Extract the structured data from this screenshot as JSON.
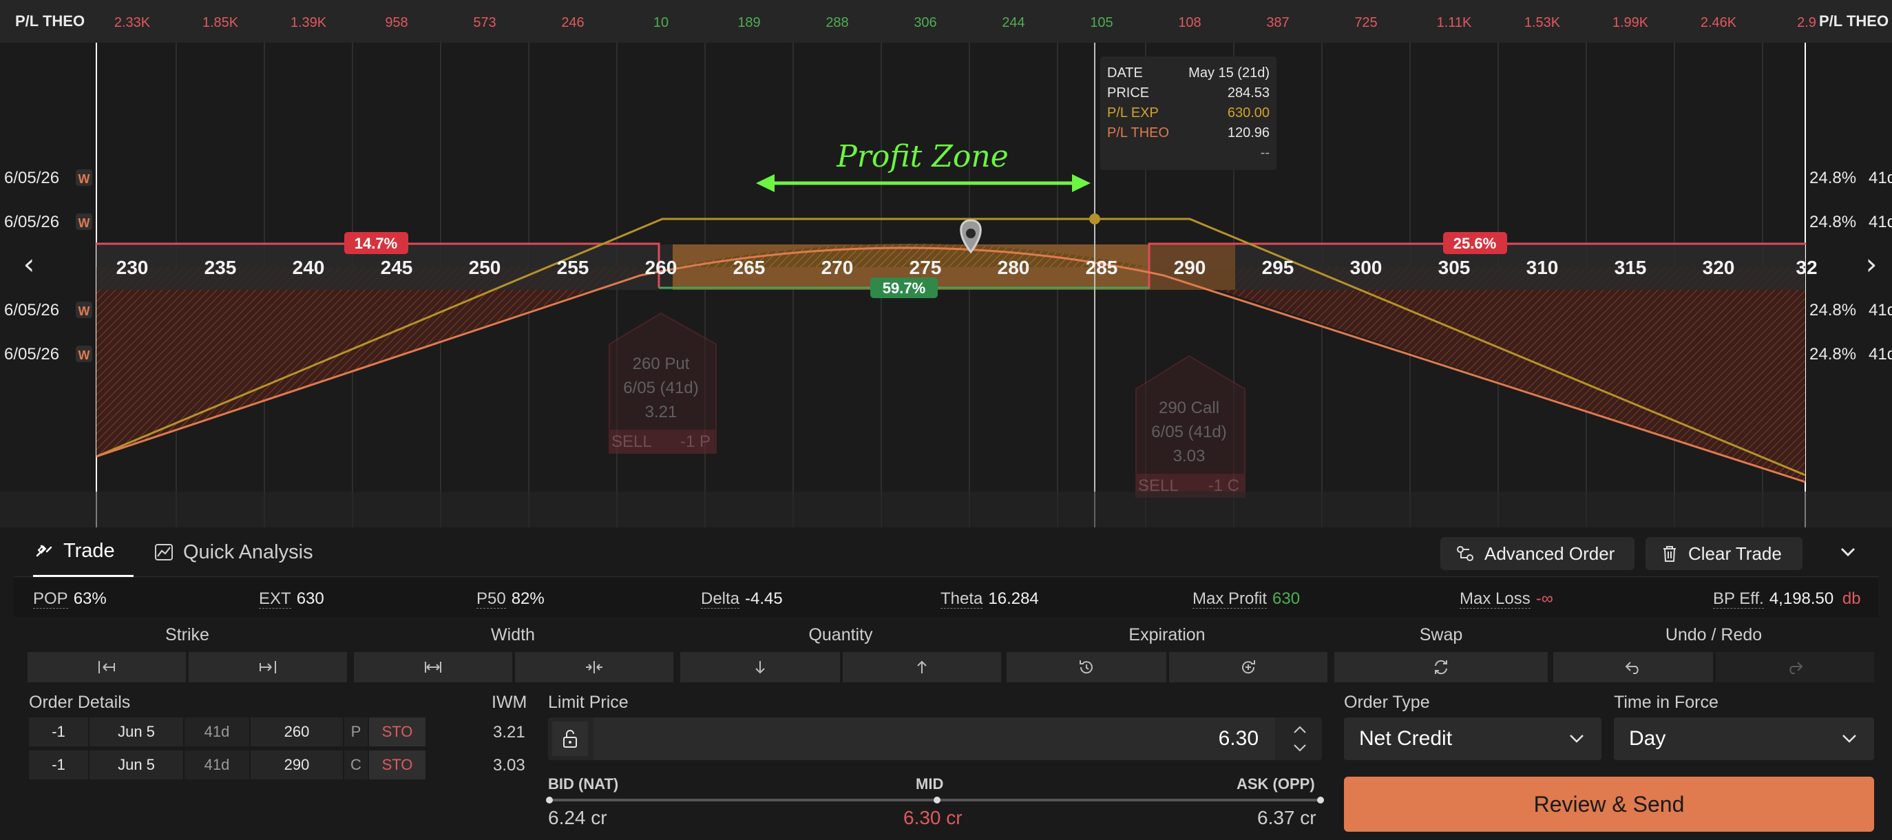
{
  "chart": {
    "pl_theo_label": "P/L THEO",
    "pl_theo_values": [
      "2.33K",
      "1.85K",
      "1.39K",
      "958",
      "573",
      "246",
      "10",
      "189",
      "288",
      "306",
      "244",
      "105",
      "108",
      "387",
      "725",
      "1.11K",
      "1.53K",
      "1.99K",
      "2.46K",
      "2.9"
    ],
    "pl_theo_colors": [
      "neg",
      "neg",
      "neg",
      "neg",
      "neg",
      "neg",
      "pos",
      "pos",
      "pos",
      "pos",
      "pos",
      "pos",
      "neg",
      "neg",
      "neg",
      "neg",
      "neg",
      "neg",
      "neg",
      "neg"
    ],
    "strikes": [
      "230",
      "235",
      "240",
      "245",
      "250",
      "255",
      "260",
      "265",
      "270",
      "275",
      "280",
      "285",
      "290",
      "295",
      "300",
      "305",
      "310",
      "315",
      "320",
      "32"
    ],
    "date_rows": [
      "6/05/26",
      "6/05/26",
      "6/05/26",
      "6/05/26"
    ],
    "date_badge": "W",
    "iv_rows": [
      "24.8%",
      "24.8%",
      "24.8%",
      "24.8%"
    ],
    "iv_suffix": "41d",
    "left_prob": "14.7%",
    "mid_prob": "59.7%",
    "right_prob": "25.6%",
    "profit_zone_label": "Profit Zone",
    "put_leg": {
      "line1": "260 Put",
      "line2": "6/05 (41d)",
      "line3": "3.21",
      "side": "SELL",
      "qty": "-1 P"
    },
    "call_leg": {
      "line1": "290 Call",
      "line2": "6/05 (41d)",
      "line3": "3.03",
      "side": "SELL",
      "qty": "-1 C"
    },
    "nav_left": "‹",
    "nav_right": "›",
    "colors": {
      "pos": "#4caf50",
      "neg": "#e0595f",
      "gold": "#b5922a",
      "orange": "#e07a4f",
      "green_arrow": "#6cf542"
    }
  },
  "tooltip": {
    "rows": [
      {
        "label": "DATE",
        "value": "May 15 (21d)",
        "label_color": "#e8e8e8",
        "value_color": "#e8e8e8"
      },
      {
        "label": "PRICE",
        "value": "284.53",
        "label_color": "#e8e8e8",
        "value_color": "#e8e8e8"
      },
      {
        "label": "P/L EXP",
        "value": "630.00",
        "label_color": "#d4a32a",
        "value_color": "#d4a32a"
      },
      {
        "label": "P/L THEO",
        "value": "120.96",
        "label_color": "#e07a4f",
        "value_color": "#e8e8e8"
      },
      {
        "label": "",
        "value": "--",
        "label_color": "#e8e8e8",
        "value_color": "#aaaaaa"
      }
    ]
  },
  "tabs": {
    "trade": "Trade",
    "quick_analysis": "Quick Analysis"
  },
  "header_buttons": {
    "advanced_order": "Advanced Order",
    "clear_trade": "Clear Trade"
  },
  "stats": [
    {
      "label": "POP",
      "value": "63%",
      "color": "#f2f2f2"
    },
    {
      "label": "EXT",
      "value": "630",
      "color": "#f2f2f2"
    },
    {
      "label": "P50",
      "value": "82%",
      "color": "#f2f2f2"
    },
    {
      "label": "Delta",
      "value": "-4.45",
      "color": "#f2f2f2"
    },
    {
      "label": "Theta",
      "value": "16.284",
      "color": "#f2f2f2"
    },
    {
      "label": "Max Profit",
      "value": "630",
      "color": "#4caf50"
    },
    {
      "label": "Max Loss",
      "value": "-∞",
      "color": "#e0595f"
    },
    {
      "label": "BP Eff.",
      "value": "4,198.50",
      "suffix": "db",
      "color": "#f2f2f2"
    }
  ],
  "groups": {
    "strike": "Strike",
    "width": "Width",
    "quantity": "Quantity",
    "expiration": "Expiration",
    "swap": "Swap",
    "undo_redo": "Undo / Redo"
  },
  "order_details": {
    "title": "Order Details",
    "iwm_title": "IWM",
    "rows": [
      {
        "qty": "-1",
        "exp": "Jun 5",
        "dte": "41d",
        "strike": "260",
        "type": "P",
        "action": "STO",
        "price": "3.21"
      },
      {
        "qty": "-1",
        "exp": "Jun 5",
        "dte": "41d",
        "strike": "290",
        "type": "C",
        "action": "STO",
        "price": "3.03"
      }
    ]
  },
  "limit": {
    "title": "Limit Price",
    "value": "6.30"
  },
  "bid_ask": {
    "bid_label": "BID (NAT)",
    "mid_label": "MID",
    "ask_label": "ASK (OPP)",
    "bid": "6.24 cr",
    "mid": "6.30 cr",
    "ask": "6.37 cr"
  },
  "order_type": {
    "title": "Order Type",
    "value": "Net Credit"
  },
  "time_in_force": {
    "title": "Time in Force",
    "value": "Day"
  },
  "review_button": "Review & Send"
}
